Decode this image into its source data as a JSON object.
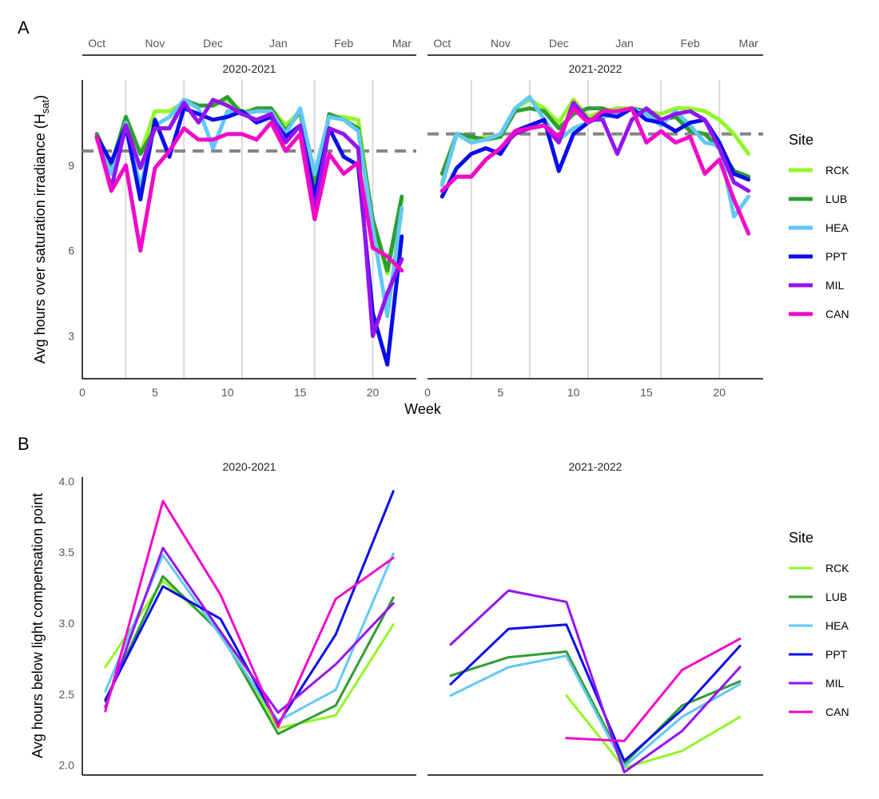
{
  "chart_data": [
    {
      "panel_tag": "A",
      "type": "line",
      "ylabel": "Avg hours over saturation irradiance (H",
      "ylabel_sub": "sat",
      "ylabel_tail": ")",
      "xlabel": "Week",
      "x_range": [
        0,
        23
      ],
      "y_range": [
        1.5,
        12.0
      ],
      "x_ticks": [
        0,
        5,
        10,
        15,
        20
      ],
      "y_ticks": [
        3,
        6,
        9
      ],
      "month_labels": [
        "Oct",
        "Nov",
        "Dec",
        "Jan",
        "Feb",
        "Mar"
      ],
      "month_positions": [
        1,
        5,
        9,
        13.5,
        18,
        22
      ],
      "vertical_lines": [
        3,
        7,
        11,
        16,
        20
      ],
      "legend_title": "Site",
      "legend_position": "right",
      "facets": [
        {
          "label": "2020-2021",
          "ref_line": 9.5,
          "series": [
            {
              "name": "RCK",
              "color": "#94f52a",
              "x": [
                1,
                2,
                3,
                4,
                5,
                6,
                7,
                8,
                9,
                10,
                11,
                12,
                13,
                14,
                15,
                16,
                17,
                18,
                19,
                20,
                21,
                22
              ],
              "y": [
                10.0,
                9.0,
                10.7,
                9.4,
                10.9,
                10.9,
                11.2,
                11.1,
                11.1,
                11.3,
                10.9,
                10.9,
                11.0,
                10.4,
                10.9,
                8.1,
                10.7,
                10.7,
                10.6,
                7.0,
                5.2,
                7.8
              ]
            },
            {
              "name": "LUB",
              "color": "#2e9e34",
              "x": [
                1,
                2,
                3,
                4,
                5,
                6,
                7,
                8,
                9,
                10,
                11,
                12,
                13,
                14,
                15,
                16,
                17,
                18,
                19,
                20,
                21,
                22
              ],
              "y": [
                10.1,
                9.0,
                10.7,
                9.4,
                10.3,
                10.3,
                11.3,
                11.1,
                11.1,
                11.4,
                10.8,
                11.0,
                11.0,
                10.2,
                10.9,
                8.2,
                10.8,
                10.6,
                10.3,
                7.1,
                5.3,
                7.9
              ]
            },
            {
              "name": "HEA",
              "color": "#62c8f5",
              "x": [
                1,
                2,
                3,
                4,
                5,
                6,
                7,
                8,
                9,
                10,
                11,
                12,
                13,
                14,
                15,
                16,
                17,
                18,
                19,
                20,
                21,
                22
              ],
              "y": [
                9.9,
                8.7,
                10.5,
                8.2,
                10.4,
                10.7,
                11.3,
                11.0,
                9.6,
                10.9,
                10.8,
                10.9,
                10.9,
                10.1,
                11.0,
                8.7,
                10.7,
                10.6,
                10.2,
                6.8,
                3.7,
                7.5
              ]
            },
            {
              "name": "PPT",
              "color": "#0a0ee8",
              "x": [
                1,
                2,
                3,
                4,
                5,
                6,
                7,
                8,
                9,
                10,
                11,
                12,
                13,
                14,
                15,
                16,
                17,
                18,
                19,
                20,
                21,
                22
              ],
              "y": [
                10.0,
                9.1,
                10.4,
                7.8,
                10.6,
                9.3,
                11.0,
                10.8,
                10.6,
                10.7,
                10.9,
                10.5,
                10.7,
                10.0,
                10.4,
                7.9,
                10.3,
                9.3,
                9.0,
                3.8,
                2.0,
                6.5
              ]
            },
            {
              "name": "MIL",
              "color": "#9414f0",
              "x": [
                1,
                2,
                3,
                4,
                5,
                6,
                7,
                8,
                9,
                10,
                11,
                12,
                13,
                14,
                15,
                16,
                17,
                18,
                19,
                20,
                21,
                22
              ],
              "y": [
                10.0,
                8.2,
                10.4,
                8.9,
                10.3,
                10.3,
                11.2,
                10.5,
                11.3,
                11.1,
                10.8,
                10.6,
                10.8,
                9.8,
                10.4,
                7.4,
                10.3,
                10.1,
                9.6,
                3.0,
                4.5,
                5.7
              ]
            },
            {
              "name": "CAN",
              "color": "#f00ac8",
              "x": [
                1,
                2,
                3,
                4,
                5,
                6,
                7,
                8,
                9,
                10,
                11,
                12,
                13,
                14,
                15,
                16,
                17,
                18,
                19,
                20,
                21,
                22
              ],
              "y": [
                10.0,
                8.1,
                9.0,
                6.0,
                8.9,
                9.5,
                10.3,
                9.9,
                9.9,
                10.1,
                10.1,
                9.9,
                10.5,
                9.5,
                10.1,
                7.1,
                9.4,
                8.7,
                9.1,
                6.1,
                5.8,
                5.3
              ]
            }
          ]
        },
        {
          "label": "2021-2022",
          "ref_line": 10.1,
          "series": [
            {
              "name": "RCK",
              "color": "#94f52a",
              "x": [
                1,
                2,
                3,
                4,
                5,
                6,
                7,
                8,
                9,
                10,
                11,
                12,
                13,
                14,
                15,
                16,
                17,
                18,
                19,
                20,
                21,
                22
              ],
              "y": [
                8.4,
                10.1,
                9.9,
                10.0,
                10.0,
                11.0,
                11.3,
                11.0,
                10.5,
                11.3,
                10.7,
                10.9,
                11.0,
                11.0,
                10.9,
                10.8,
                11.0,
                11.0,
                10.9,
                10.6,
                10.1,
                9.4
              ]
            },
            {
              "name": "LUB",
              "color": "#2e9e34",
              "x": [
                1,
                2,
                3,
                4,
                5,
                6,
                7,
                8,
                9,
                10,
                11,
                12,
                13,
                14,
                15,
                16,
                17,
                18,
                19,
                20,
                21,
                22
              ],
              "y": [
                8.7,
                10.1,
                10.0,
                9.9,
                10.0,
                10.9,
                11.0,
                10.9,
                10.3,
                10.8,
                11.0,
                11.0,
                10.8,
                11.0,
                10.9,
                10.6,
                10.7,
                10.2,
                10.1,
                9.6,
                8.8,
                8.6
              ]
            },
            {
              "name": "HEA",
              "color": "#62c8f5",
              "x": [
                1,
                2,
                3,
                4,
                5,
                6,
                7,
                8,
                9,
                10,
                11,
                12,
                13,
                14,
                15,
                16,
                17,
                18,
                19,
                20,
                21,
                22
              ],
              "y": [
                8.3,
                10.1,
                9.8,
                9.9,
                10.1,
                11.0,
                11.4,
                10.6,
                9.9,
                10.3,
                10.5,
                10.7,
                10.8,
                11.0,
                10.8,
                10.4,
                10.9,
                10.4,
                9.8,
                9.7,
                7.2,
                7.9
              ]
            },
            {
              "name": "PPT",
              "color": "#0a0ee8",
              "x": [
                1,
                2,
                3,
                4,
                5,
                6,
                7,
                8,
                9,
                10,
                11,
                12,
                13,
                14,
                15,
                16,
                17,
                18,
                19,
                20,
                21,
                22
              ],
              "y": [
                7.9,
                8.9,
                9.4,
                9.6,
                9.4,
                10.2,
                10.4,
                10.6,
                8.8,
                10.1,
                10.5,
                10.8,
                10.7,
                11.0,
                10.6,
                10.5,
                10.2,
                10.5,
                10.6,
                9.8,
                8.7,
                8.5
              ]
            },
            {
              "name": "MIL",
              "color": "#9414f0",
              "x": [
                1,
                2,
                3,
                4,
                5,
                6,
                7,
                8,
                9,
                10,
                11,
                12,
                13,
                14,
                15,
                16,
                17,
                18,
                19,
                20,
                21,
                22
              ],
              "y": [
                8.1,
                8.6,
                8.6,
                9.2,
                9.6,
                10.1,
                10.3,
                10.4,
                9.8,
                11.2,
                10.6,
                10.6,
                9.4,
                10.6,
                11.0,
                10.6,
                10.8,
                10.9,
                10.6,
                9.6,
                8.4,
                8.1
              ]
            },
            {
              "name": "CAN",
              "color": "#f00ac8",
              "x": [
                1,
                2,
                3,
                4,
                5,
                6,
                7,
                8,
                9,
                10,
                11,
                12,
                13,
                14,
                15,
                16,
                17,
                18,
                19,
                20,
                21,
                22
              ],
              "y": [
                8.1,
                8.6,
                8.6,
                9.2,
                9.6,
                10.2,
                10.3,
                10.4,
                10.0,
                11.0,
                10.5,
                10.9,
                10.9,
                11.0,
                9.8,
                10.2,
                9.8,
                10.0,
                8.7,
                9.2,
                7.8,
                6.6
              ]
            }
          ]
        }
      ]
    },
    {
      "panel_tag": "B",
      "type": "line",
      "ylabel": "Avg hours below light compensation point",
      "x_range": [
        0.6,
        6.4
      ],
      "y_range": [
        1.93,
        4.03
      ],
      "y_ticks": [
        2.0,
        2.5,
        3.0,
        3.5,
        4.0
      ],
      "y_tick_labels": [
        "2.0",
        "2.5",
        "3.0",
        "3.5",
        "4.0"
      ],
      "legend_title": "Site",
      "legend_position": "right",
      "facets": [
        {
          "label": "2020-2021",
          "series": [
            {
              "name": "RCK",
              "color": "#94f52a",
              "x": [
                1,
                2,
                3,
                4,
                5,
                6
              ],
              "y": [
                2.69,
                3.3,
                2.95,
                2.26,
                2.35,
                2.99
              ]
            },
            {
              "name": "LUB",
              "color": "#2e9e34",
              "x": [
                1,
                2,
                3,
                4,
                5,
                6
              ],
              "y": [
                2.45,
                3.33,
                2.93,
                2.22,
                2.42,
                3.18
              ]
            },
            {
              "name": "HEA",
              "color": "#62c8f5",
              "x": [
                1,
                2,
                3,
                4,
                5,
                6
              ],
              "y": [
                2.52,
                3.48,
                2.91,
                2.31,
                2.53,
                3.49
              ]
            },
            {
              "name": "PPT",
              "color": "#0a0ee8",
              "x": [
                1,
                2,
                3,
                4,
                5,
                6
              ],
              "y": [
                2.46,
                3.26,
                3.03,
                2.29,
                2.92,
                3.93
              ]
            },
            {
              "name": "MIL",
              "color": "#9414f0",
              "x": [
                1,
                2,
                3,
                4,
                5,
                6
              ],
              "y": [
                2.41,
                3.53,
                2.94,
                2.37,
                2.71,
                3.14
              ]
            },
            {
              "name": "CAN",
              "color": "#f00ac8",
              "x": [
                1,
                2,
                3,
                4,
                5,
                6
              ],
              "y": [
                2.38,
                3.86,
                3.2,
                2.27,
                3.17,
                3.46
              ]
            }
          ]
        },
        {
          "label": "2021-2022",
          "series": [
            {
              "name": "RCK",
              "color": "#94f52a",
              "x": [
                3,
                4,
                5,
                6
              ],
              "y": [
                2.49,
                1.98,
                2.1,
                2.34
              ]
            },
            {
              "name": "LUB",
              "color": "#2e9e34",
              "x": [
                1,
                2,
                3,
                4,
                5,
                6
              ],
              "y": [
                2.63,
                2.76,
                2.8,
                2.01,
                2.42,
                2.59
              ]
            },
            {
              "name": "HEA",
              "color": "#62c8f5",
              "x": [
                1,
                2,
                3,
                4,
                5,
                6
              ],
              "y": [
                2.49,
                2.69,
                2.77,
                1.99,
                2.34,
                2.57
              ]
            },
            {
              "name": "PPT",
              "color": "#0a0ee8",
              "x": [
                1,
                2,
                3,
                4,
                5,
                6
              ],
              "y": [
                2.57,
                2.96,
                2.99,
                2.03,
                2.39,
                2.84
              ]
            },
            {
              "name": "MIL",
              "color": "#9414f0",
              "x": [
                1,
                2,
                3,
                4,
                5,
                6
              ],
              "y": [
                2.85,
                3.23,
                3.15,
                1.95,
                2.24,
                2.69
              ]
            },
            {
              "name": "CAN",
              "color": "#f00ac8",
              "x": [
                3,
                4,
                5,
                6
              ],
              "y": [
                2.19,
                2.17,
                2.67,
                2.89
              ]
            }
          ]
        }
      ]
    }
  ]
}
